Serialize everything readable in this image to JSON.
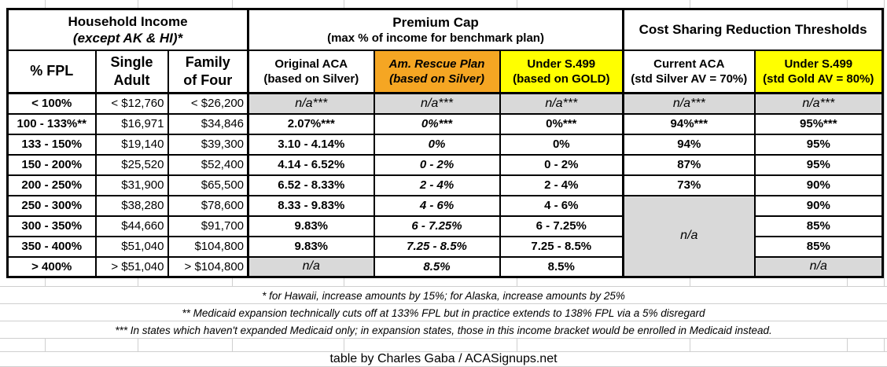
{
  "table": {
    "header": {
      "household": {
        "title": "Household Income",
        "subtitle": "(except AK & HI)*"
      },
      "premium": {
        "title": "Premium Cap",
        "subtitle": "(max % of income for benchmark plan)"
      },
      "csr": {
        "title": "Cost Sharing Reduction Thresholds"
      }
    },
    "columns": [
      {
        "label": "% FPL"
      },
      {
        "label": "Single\nAdult"
      },
      {
        "label": "Family\nof Four"
      },
      {
        "label": "Original ACA\n(based on Silver)"
      },
      {
        "label": "Am. Rescue Plan\n(based on Silver)"
      },
      {
        "label": "Under S.499\n(based on GOLD)"
      },
      {
        "label": "Current ACA\n(std Silver AV = 70%)"
      },
      {
        "label": "Under S.499\n(std Gold AV = 80%)"
      }
    ],
    "rows": [
      {
        "cells": [
          {
            "text": "< 100%"
          },
          {
            "text": "< $12,760"
          },
          {
            "text": "< $26,200"
          },
          {
            "text": "n/a***",
            "na": true
          },
          {
            "text": "n/a***",
            "na": true
          },
          {
            "text": "n/a***",
            "na": true
          },
          {
            "text": "n/a***",
            "na": true
          },
          {
            "text": "n/a***",
            "na": true
          }
        ]
      },
      {
        "cells": [
          {
            "text": "100 - 133%**"
          },
          {
            "text": "$16,971"
          },
          {
            "text": "$34,846"
          },
          {
            "text": "2.07%***"
          },
          {
            "text": "0%***"
          },
          {
            "text": "0%***"
          },
          {
            "text": "94%***"
          },
          {
            "text": "95%***"
          }
        ]
      },
      {
        "cells": [
          {
            "text": "133 - 150%"
          },
          {
            "text": "$19,140"
          },
          {
            "text": "$39,300"
          },
          {
            "text": "3.10 - 4.14%"
          },
          {
            "text": "0%"
          },
          {
            "text": "0%"
          },
          {
            "text": "94%"
          },
          {
            "text": "95%"
          }
        ]
      },
      {
        "cells": [
          {
            "text": "150 - 200%"
          },
          {
            "text": "$25,520"
          },
          {
            "text": "$52,400"
          },
          {
            "text": "4.14 - 6.52%"
          },
          {
            "text": "0 - 2%"
          },
          {
            "text": "0 - 2%"
          },
          {
            "text": "87%"
          },
          {
            "text": "95%"
          }
        ]
      },
      {
        "cells": [
          {
            "text": "200 - 250%"
          },
          {
            "text": "$31,900"
          },
          {
            "text": "$65,500"
          },
          {
            "text": "6.52 - 8.33%"
          },
          {
            "text": "2 - 4%"
          },
          {
            "text": "2 - 4%"
          },
          {
            "text": "73%"
          },
          {
            "text": "90%"
          }
        ]
      },
      {
        "cells": [
          {
            "text": "250 - 300%"
          },
          {
            "text": "$38,280"
          },
          {
            "text": "$78,600"
          },
          {
            "text": "8.33 - 9.83%"
          },
          {
            "text": "4 - 6%"
          },
          {
            "text": "4 - 6%"
          },
          {
            "text": "n/a",
            "na": true,
            "rowspan": 4
          },
          {
            "text": "90%"
          }
        ]
      },
      {
        "cells": [
          {
            "text": "300 - 350%"
          },
          {
            "text": "$44,660"
          },
          {
            "text": "$91,700"
          },
          {
            "text": "9.83%"
          },
          {
            "text": "6 - 7.25%"
          },
          {
            "text": "6 - 7.25%"
          },
          null,
          {
            "text": "85%"
          }
        ]
      },
      {
        "cells": [
          {
            "text": "350 - 400%"
          },
          {
            "text": "$51,040"
          },
          {
            "text": "$104,800"
          },
          {
            "text": "9.83%"
          },
          {
            "text": "7.25 - 8.5%"
          },
          {
            "text": "7.25 - 8.5%"
          },
          null,
          {
            "text": "85%"
          }
        ]
      },
      {
        "cells": [
          {
            "text": "> 400%"
          },
          {
            "text": "> $51,040"
          },
          {
            "text": "> $104,800"
          },
          {
            "text": "n/a",
            "na": true
          },
          {
            "text": "8.5%"
          },
          {
            "text": "8.5%"
          },
          null,
          {
            "text": "n/a",
            "na": true
          }
        ]
      }
    ]
  },
  "footnotes": [
    "* for Hawaii, increase amounts by 15%; for Alaska, increase amounts by 25%",
    "** Medicaid expansion technically cuts off at 133% FPL but in practice extends to 138% FPL via a 5% disregard",
    "*** In states which haven't expanded Medicaid only; in expansion states, those in this income bracket would be enrolled in Medicaid instead."
  ],
  "credit": "table by Charles Gaba / ACASignups.net",
  "colors": {
    "orange": "#F5A623",
    "yellow": "#FFFF00",
    "na_gray": "#D9D9D9",
    "border": "#000000",
    "gridline": "#CFCFCF"
  }
}
